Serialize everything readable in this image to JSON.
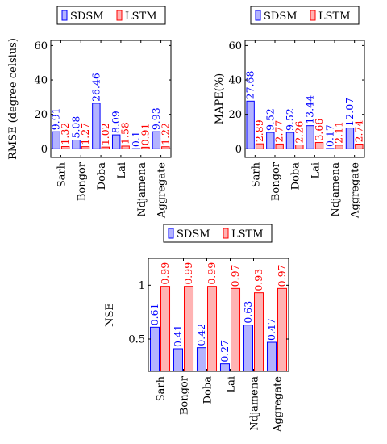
{
  "colors": {
    "sdsm_stroke": "#0000ff",
    "sdsm_fill": "#b3b3ff",
    "lstm_stroke": "#ff0000",
    "lstm_fill": "#ffb3b3",
    "axis": "#000000"
  },
  "chart_data": [
    {
      "type": "bar",
      "categories": [
        "Sarh",
        "Bongor",
        "Doba",
        "Lai",
        "Ndjamena",
        "Aggregate"
      ],
      "series": [
        {
          "name": "SDSM",
          "values": [
            9.91,
            5.08,
            26.46,
            8.09,
            0.1,
            9.93
          ],
          "labels": [
            "9.91",
            "5.08",
            "26.46",
            "8.09",
            "0.1",
            "9.93"
          ]
        },
        {
          "name": "LSTM",
          "values": [
            1.32,
            1.27,
            1.02,
            1.58,
            0.91,
            1.22
          ],
          "labels": [
            "1.32",
            "1.27",
            "1.02",
            "1.58",
            "0.91",
            "1.22"
          ]
        }
      ],
      "ylabel": "RMSE (degree celsius)",
      "ylim": [
        -5,
        63
      ],
      "yticks": [
        0,
        20,
        40,
        60
      ],
      "legend": "top-center"
    },
    {
      "type": "bar",
      "categories": [
        "Sarh",
        "Bongor",
        "Doba",
        "Lai",
        "Ndjamena",
        "Aggregate"
      ],
      "series": [
        {
          "name": "SDSM",
          "values": [
            27.68,
            9.52,
            9.52,
            13.44,
            0.17,
            12.07
          ],
          "labels": [
            "27.68",
            "9.52",
            "9.52",
            "13.44",
            "0.17",
            "12.07"
          ]
        },
        {
          "name": "LSTM",
          "values": [
            2.89,
            2.77,
            2.26,
            3.66,
            2.11,
            2.74
          ],
          "labels": [
            "2.89",
            "2.77",
            "2.26",
            "3.66",
            "2.11",
            "2.74"
          ]
        }
      ],
      "ylabel": "MAPE(%)",
      "ylim": [
        -5,
        63
      ],
      "yticks": [
        0,
        20,
        40,
        60
      ],
      "legend": "top-center"
    },
    {
      "type": "bar",
      "categories": [
        "Sarh",
        "Bongor",
        "Doba",
        "Lai",
        "Ndjamena",
        "Aggregate"
      ],
      "series": [
        {
          "name": "SDSM",
          "values": [
            0.61,
            0.41,
            0.42,
            0.27,
            0.63,
            0.47
          ],
          "labels": [
            "0.61",
            "0.41",
            "0.42",
            "0.27",
            "0.63",
            "0.47"
          ]
        },
        {
          "name": "LSTM",
          "values": [
            0.99,
            0.99,
            0.99,
            0.97,
            0.93,
            0.97
          ],
          "labels": [
            "0.99",
            "0.99",
            "0.99",
            "0.97",
            "0.93",
            "0.97"
          ]
        }
      ],
      "ylabel": "NSE",
      "ylim": [
        0.2,
        1.25
      ],
      "yticks": [
        0.5,
        1
      ],
      "legend": "top-center"
    }
  ]
}
